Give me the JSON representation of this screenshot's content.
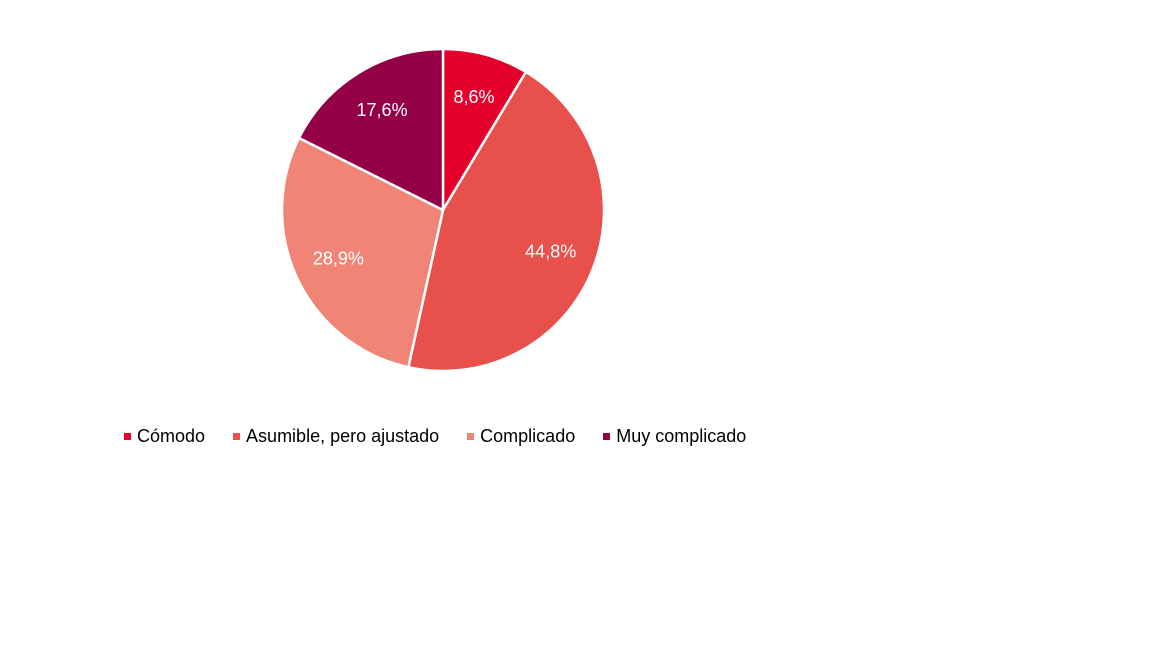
{
  "chart_data": {
    "type": "pie",
    "categories": [
      "Cómodo",
      "Asumible, pero ajustado",
      "Complicado",
      "Muy complicado"
    ],
    "values": [
      8.6,
      44.8,
      28.9,
      17.6
    ],
    "value_labels": [
      "8,6%",
      "44,8%",
      "28,9%",
      "17,6%"
    ],
    "colors": [
      "#E4002B",
      "#E8504C",
      "#F08577",
      "#940046"
    ],
    "start_angle_deg": 0,
    "direction": "clockwise",
    "legend_position": "bottom-left",
    "title": ""
  }
}
